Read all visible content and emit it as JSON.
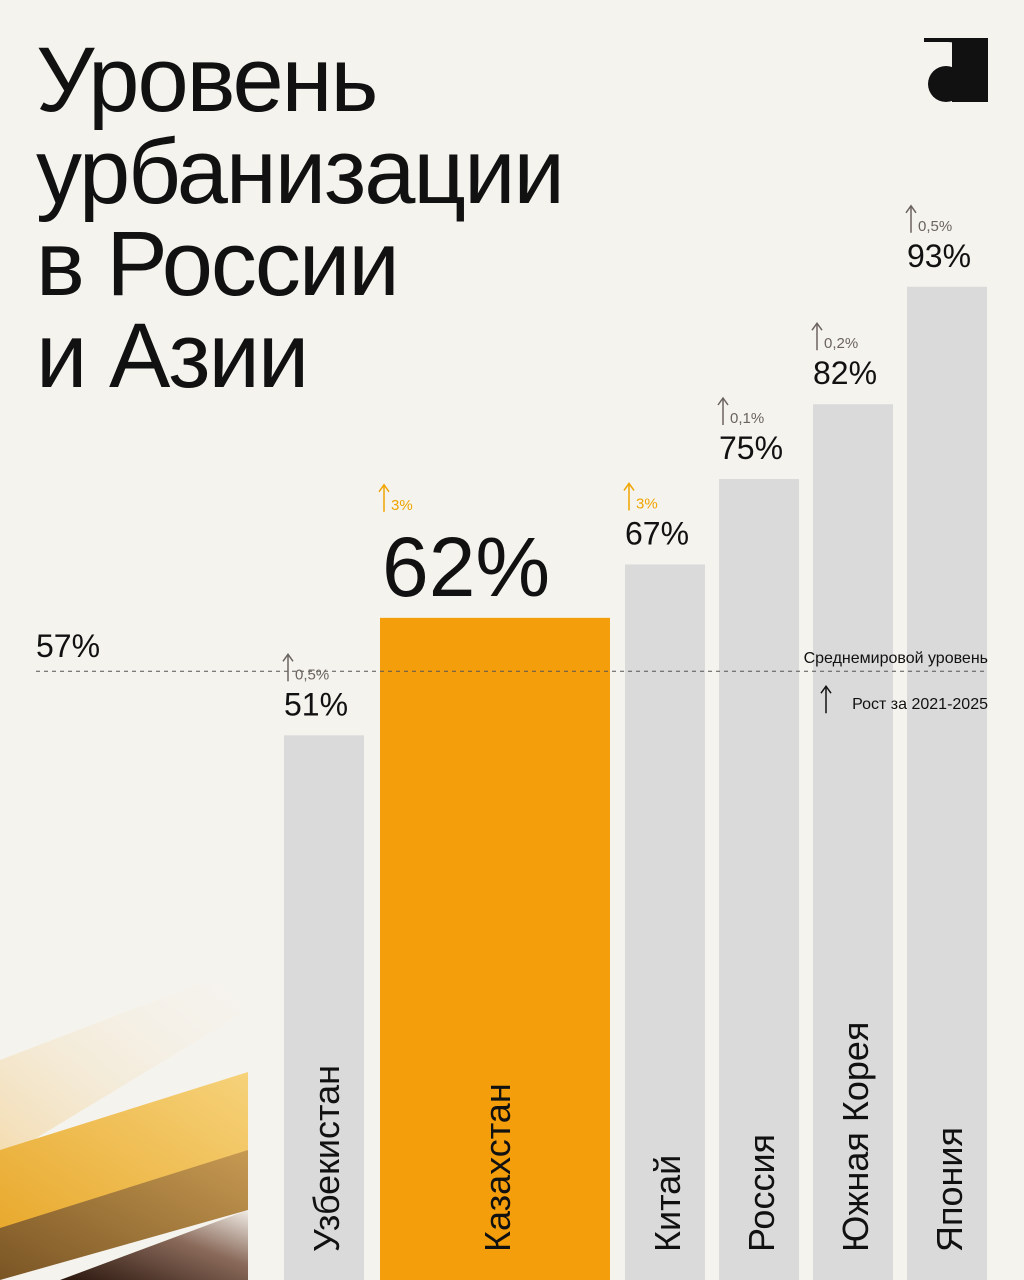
{
  "title_lines": [
    "Уровень",
    "урбанизации",
    "в России",
    "и Азии"
  ],
  "chart_data": {
    "type": "bar",
    "title": "Уровень урбанизации в России и Азии",
    "categories": [
      "Узбекистан",
      "Казахстан",
      "Китай",
      "Россия",
      "Южная Корея",
      "Япония"
    ],
    "values": [
      51,
      62,
      67,
      75,
      82,
      93
    ],
    "value_labels": [
      "51%",
      "62%",
      "67%",
      "75%",
      "82%",
      "93%"
    ],
    "growth_labels": [
      "0,5%",
      "3%",
      "3%",
      "0,1%",
      "0,2%",
      "0,5%"
    ],
    "highlight_index": 1,
    "unit": "%",
    "reference_line": {
      "value": 57,
      "value_label": "57%",
      "label": "Среднемировой уровень"
    },
    "growth_legend": "Рост за 2021-2025",
    "colors": {
      "bar": "#dadada",
      "highlight": "#f59e0b",
      "growth_highlight": "#f0a500",
      "growth": "#6b6360",
      "text": "#111111",
      "background": "#f5f3ee"
    }
  }
}
